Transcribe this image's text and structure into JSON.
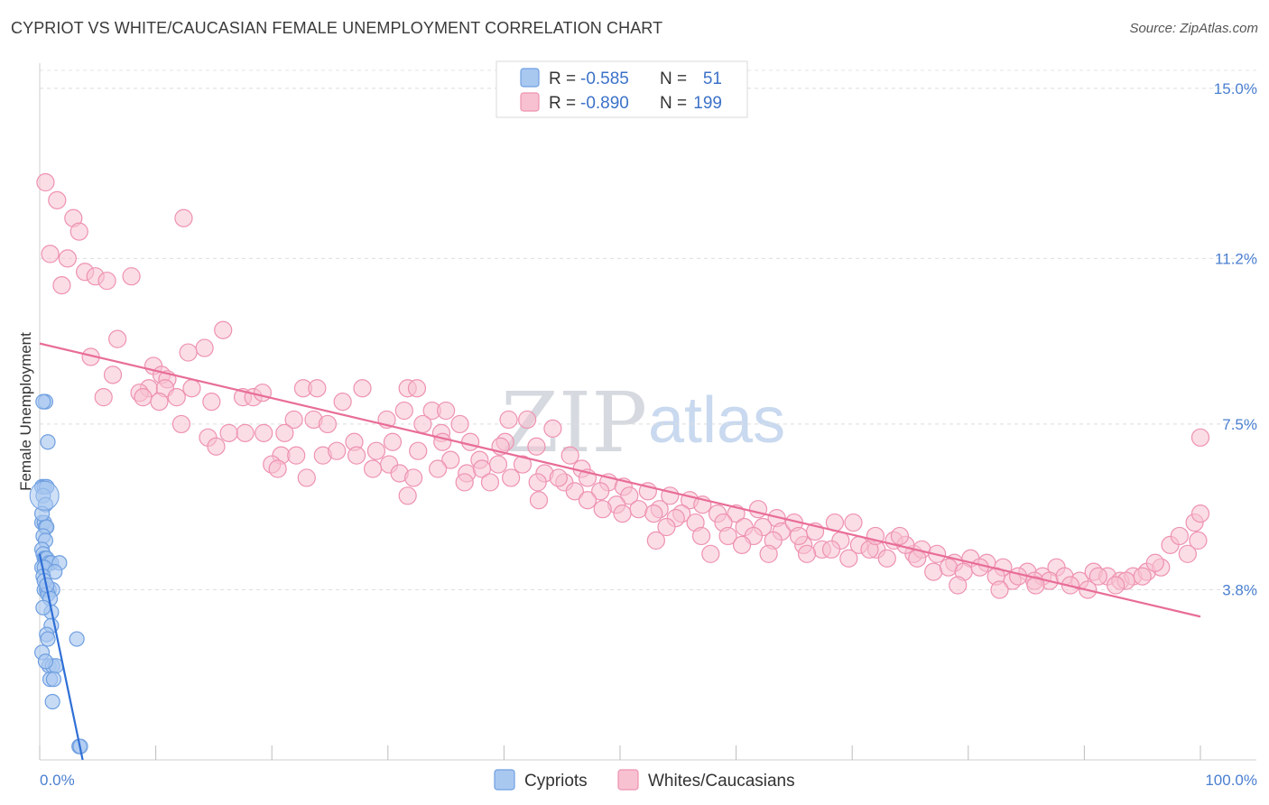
{
  "header": {
    "title": "CYPRIOT VS WHITE/CAUCASIAN FEMALE UNEMPLOYMENT CORRELATION CHART",
    "source": "Source: ZipAtlas.com"
  },
  "watermark": {
    "zip": "ZIP",
    "atlas": "atlas"
  },
  "legend": {
    "r_label": "R =",
    "n_label": "N =",
    "rows": [
      {
        "name": "Cypriots",
        "r": "-0.585",
        "n": "51",
        "color": "#7aa7e6"
      },
      {
        "name": "Whites/Caucasians",
        "r": "-0.890",
        "n": "199",
        "color": "#f29ab5"
      }
    ]
  },
  "colors": {
    "blue_fill": "#a9c8f0",
    "blue_stroke": "#6f9fe0",
    "blue_line": "#2f6fd6",
    "pink_fill": "#f7c1d1",
    "pink_stroke": "#ee92b0",
    "pink_line": "#e86d97"
  },
  "chart_data": {
    "type": "scatter",
    "title": "CYPRIOT VS WHITE/CAUCASIAN FEMALE UNEMPLOYMENT CORRELATION CHART",
    "xlabel": "",
    "ylabel": "Female Unemployment",
    "xlim": [
      0,
      100
    ],
    "ylim": [
      0,
      15.4
    ],
    "x_tick_labels": [
      "0.0%",
      "100.0%"
    ],
    "y_ticks": [
      3.8,
      7.5,
      11.2,
      15.0
    ],
    "y_tick_labels": [
      "3.8%",
      "7.5%",
      "11.2%",
      "15.0%"
    ],
    "grid": true,
    "legend_position": "top-center",
    "series": [
      {
        "name": "Cypriots",
        "r": -0.585,
        "n": 51,
        "trend": {
          "x": [
            0,
            3.7
          ],
          "y": [
            4.6,
            0
          ]
        },
        "points": [
          [
            0.2,
            6.1
          ],
          [
            0.4,
            6.1
          ],
          [
            0.6,
            6.1
          ],
          [
            0.5,
            8.0
          ],
          [
            0.3,
            8.0
          ],
          [
            0.7,
            7.1
          ],
          [
            0.2,
            5.3
          ],
          [
            0.4,
            5.3
          ],
          [
            0.5,
            5.2
          ],
          [
            0.6,
            5.2
          ],
          [
            0.3,
            5.0
          ],
          [
            0.5,
            4.9
          ],
          [
            0.2,
            4.7
          ],
          [
            0.3,
            4.6
          ],
          [
            0.4,
            4.5
          ],
          [
            0.5,
            4.5
          ],
          [
            0.6,
            4.5
          ],
          [
            0.8,
            4.4
          ],
          [
            1.0,
            4.4
          ],
          [
            1.7,
            4.4
          ],
          [
            0.2,
            4.3
          ],
          [
            0.4,
            4.3
          ],
          [
            1.3,
            4.2
          ],
          [
            0.3,
            4.1
          ],
          [
            0.4,
            3.8
          ],
          [
            0.6,
            3.8
          ],
          [
            0.8,
            3.8
          ],
          [
            1.1,
            3.8
          ],
          [
            0.7,
            3.7
          ],
          [
            0.9,
            3.6
          ],
          [
            1.0,
            3.3
          ],
          [
            1.0,
            3.0
          ],
          [
            0.6,
            2.8
          ],
          [
            0.7,
            2.7
          ],
          [
            3.2,
            2.7
          ],
          [
            0.8,
            2.1
          ],
          [
            1.1,
            2.1
          ],
          [
            1.4,
            2.1
          ],
          [
            0.9,
            1.8
          ],
          [
            1.2,
            1.8
          ],
          [
            1.1,
            1.3
          ],
          [
            3.4,
            0.3
          ],
          [
            3.5,
            0.3
          ],
          [
            0.3,
            5.9
          ],
          [
            0.5,
            5.7
          ],
          [
            0.2,
            5.5
          ],
          [
            0.4,
            4.0
          ],
          [
            0.6,
            3.9
          ],
          [
            0.3,
            3.4
          ],
          [
            0.2,
            2.4
          ],
          [
            0.5,
            2.2
          ]
        ]
      },
      {
        "name": "Whites/Caucasians",
        "r": -0.89,
        "n": 199,
        "trend": {
          "x": [
            0,
            100
          ],
          "y": [
            9.3,
            3.2
          ]
        },
        "points": [
          [
            0.5,
            12.9
          ],
          [
            1.5,
            12.5
          ],
          [
            2.9,
            12.1
          ],
          [
            3.4,
            11.8
          ],
          [
            0.9,
            11.3
          ],
          [
            2.4,
            11.2
          ],
          [
            3.9,
            10.9
          ],
          [
            4.8,
            10.8
          ],
          [
            5.8,
            10.7
          ],
          [
            7.9,
            10.8
          ],
          [
            1.9,
            10.6
          ],
          [
            12.4,
            12.1
          ],
          [
            6.7,
            9.4
          ],
          [
            15.8,
            9.6
          ],
          [
            14.2,
            9.2
          ],
          [
            12.8,
            9.1
          ],
          [
            4.4,
            9.0
          ],
          [
            6.3,
            8.6
          ],
          [
            9.8,
            8.8
          ],
          [
            10.5,
            8.6
          ],
          [
            11.0,
            8.5
          ],
          [
            9.4,
            8.3
          ],
          [
            10.8,
            8.3
          ],
          [
            13.1,
            8.3
          ],
          [
            8.6,
            8.2
          ],
          [
            5.5,
            8.1
          ],
          [
            8.9,
            8.1
          ],
          [
            17.5,
            8.1
          ],
          [
            18.4,
            8.1
          ],
          [
            19.2,
            8.2
          ],
          [
            14.8,
            8.0
          ],
          [
            10.3,
            8.0
          ],
          [
            11.8,
            8.1
          ],
          [
            22.7,
            8.3
          ],
          [
            23.9,
            8.3
          ],
          [
            27.8,
            8.3
          ],
          [
            31.7,
            8.3
          ],
          [
            32.5,
            8.3
          ],
          [
            26.1,
            8.0
          ],
          [
            33.8,
            7.8
          ],
          [
            31.4,
            7.8
          ],
          [
            35.0,
            7.8
          ],
          [
            21.9,
            7.6
          ],
          [
            23.6,
            7.6
          ],
          [
            24.8,
            7.5
          ],
          [
            29.9,
            7.6
          ],
          [
            33.0,
            7.5
          ],
          [
            36.2,
            7.5
          ],
          [
            40.4,
            7.6
          ],
          [
            42.0,
            7.6
          ],
          [
            44.2,
            7.4
          ],
          [
            12.2,
            7.5
          ],
          [
            17.7,
            7.3
          ],
          [
            14.5,
            7.2
          ],
          [
            16.3,
            7.3
          ],
          [
            19.3,
            7.3
          ],
          [
            21.1,
            7.3
          ],
          [
            27.1,
            7.1
          ],
          [
            30.4,
            7.1
          ],
          [
            34.6,
            7.3
          ],
          [
            37.1,
            7.1
          ],
          [
            40.1,
            7.1
          ],
          [
            42.8,
            7.0
          ],
          [
            15.2,
            7.0
          ],
          [
            20.8,
            6.8
          ],
          [
            22.1,
            6.8
          ],
          [
            24.4,
            6.8
          ],
          [
            25.6,
            6.9
          ],
          [
            27.3,
            6.8
          ],
          [
            29.0,
            6.9
          ],
          [
            30.1,
            6.6
          ],
          [
            32.6,
            6.9
          ],
          [
            35.4,
            6.7
          ],
          [
            37.9,
            6.7
          ],
          [
            39.5,
            6.6
          ],
          [
            41.6,
            6.6
          ],
          [
            45.7,
            6.8
          ],
          [
            46.7,
            6.5
          ],
          [
            20.0,
            6.6
          ],
          [
            20.5,
            6.5
          ],
          [
            28.7,
            6.5
          ],
          [
            31.0,
            6.4
          ],
          [
            34.3,
            6.5
          ],
          [
            36.8,
            6.4
          ],
          [
            38.1,
            6.5
          ],
          [
            43.5,
            6.4
          ],
          [
            47.2,
            6.3
          ],
          [
            45.2,
            6.2
          ],
          [
            49.0,
            6.2
          ],
          [
            50.3,
            6.1
          ],
          [
            23.0,
            6.3
          ],
          [
            32.2,
            6.3
          ],
          [
            36.6,
            6.2
          ],
          [
            38.8,
            6.2
          ],
          [
            40.6,
            6.3
          ],
          [
            42.9,
            6.2
          ],
          [
            46.1,
            6.0
          ],
          [
            48.3,
            6.0
          ],
          [
            50.8,
            5.9
          ],
          [
            52.4,
            6.0
          ],
          [
            54.3,
            5.9
          ],
          [
            56.0,
            5.8
          ],
          [
            31.7,
            5.9
          ],
          [
            43.0,
            5.8
          ],
          [
            47.2,
            5.8
          ],
          [
            49.7,
            5.7
          ],
          [
            51.6,
            5.6
          ],
          [
            53.4,
            5.6
          ],
          [
            55.3,
            5.5
          ],
          [
            57.1,
            5.7
          ],
          [
            58.4,
            5.5
          ],
          [
            60.0,
            5.5
          ],
          [
            61.9,
            5.6
          ],
          [
            63.5,
            5.4
          ],
          [
            48.5,
            5.6
          ],
          [
            50.2,
            5.5
          ],
          [
            52.9,
            5.5
          ],
          [
            54.8,
            5.4
          ],
          [
            56.5,
            5.3
          ],
          [
            58.9,
            5.3
          ],
          [
            60.7,
            5.2
          ],
          [
            62.3,
            5.2
          ],
          [
            63.9,
            5.1
          ],
          [
            65.0,
            5.3
          ],
          [
            66.8,
            5.1
          ],
          [
            68.5,
            5.3
          ],
          [
            54.0,
            5.2
          ],
          [
            57.0,
            5.0
          ],
          [
            59.3,
            5.0
          ],
          [
            61.5,
            5.0
          ],
          [
            63.2,
            4.9
          ],
          [
            65.8,
            4.8
          ],
          [
            67.4,
            4.7
          ],
          [
            69.0,
            4.9
          ],
          [
            70.6,
            4.8
          ],
          [
            72.1,
            4.7
          ],
          [
            73.6,
            4.9
          ],
          [
            75.3,
            4.6
          ],
          [
            66.1,
            4.6
          ],
          [
            68.2,
            4.7
          ],
          [
            69.7,
            4.5
          ],
          [
            71.5,
            4.7
          ],
          [
            73.0,
            4.5
          ],
          [
            74.6,
            4.8
          ],
          [
            76.0,
            4.7
          ],
          [
            77.3,
            4.6
          ],
          [
            78.8,
            4.4
          ],
          [
            80.2,
            4.5
          ],
          [
            81.6,
            4.4
          ],
          [
            83.0,
            4.3
          ],
          [
            72.0,
            5.0
          ],
          [
            74.1,
            5.0
          ],
          [
            75.6,
            4.5
          ],
          [
            77.0,
            4.2
          ],
          [
            78.3,
            4.3
          ],
          [
            79.6,
            4.2
          ],
          [
            81.0,
            4.3
          ],
          [
            82.4,
            4.1
          ],
          [
            83.8,
            4.0
          ],
          [
            85.1,
            4.2
          ],
          [
            86.4,
            4.1
          ],
          [
            87.6,
            4.3
          ],
          [
            84.3,
            4.1
          ],
          [
            85.7,
            4.0
          ],
          [
            87.0,
            4.0
          ],
          [
            88.3,
            4.1
          ],
          [
            89.6,
            4.0
          ],
          [
            90.8,
            4.2
          ],
          [
            92.0,
            4.1
          ],
          [
            93.1,
            4.0
          ],
          [
            94.2,
            4.1
          ],
          [
            95.4,
            4.2
          ],
          [
            96.6,
            4.3
          ],
          [
            88.8,
            3.9
          ],
          [
            91.2,
            4.1
          ],
          [
            93.6,
            4.0
          ],
          [
            95.0,
            4.1
          ],
          [
            96.1,
            4.4
          ],
          [
            97.4,
            4.8
          ],
          [
            98.2,
            5.0
          ],
          [
            98.9,
            4.6
          ],
          [
            99.5,
            5.3
          ],
          [
            100.0,
            5.5
          ],
          [
            99.8,
            4.9
          ],
          [
            100.0,
            7.2
          ],
          [
            62.8,
            4.6
          ],
          [
            65.4,
            5.0
          ],
          [
            70.1,
            5.3
          ],
          [
            34.7,
            7.1
          ],
          [
            44.7,
            6.3
          ],
          [
            39.7,
            7.0
          ],
          [
            53.1,
            4.9
          ],
          [
            57.8,
            4.6
          ],
          [
            60.5,
            4.8
          ],
          [
            79.1,
            3.9
          ],
          [
            82.7,
            3.8
          ],
          [
            85.8,
            3.9
          ],
          [
            90.3,
            3.8
          ],
          [
            92.7,
            3.9
          ]
        ]
      }
    ]
  }
}
